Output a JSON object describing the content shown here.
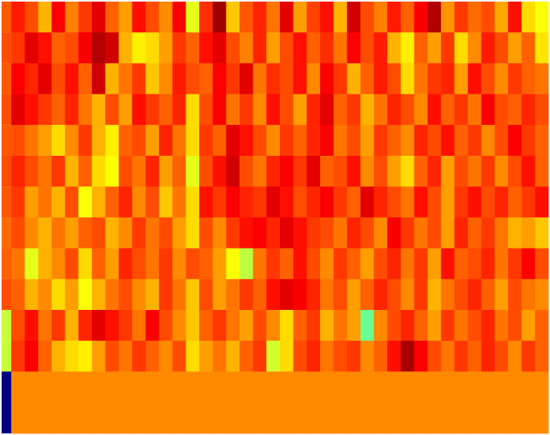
{
  "chart_data": {
    "type": "heatmap",
    "colormap": "jet",
    "zlim": [
      0,
      1
    ],
    "side_values": [
      0.79,
      0.8,
      0.79,
      0.8,
      0.79,
      0.8,
      0.79,
      0.77,
      0.78,
      0.8,
      0.57,
      0.57,
      0
    ],
    "values": [
      [
        0.85,
        0.8,
        0.7,
        0.88,
        0.75,
        0.82,
        0.9,
        0.78,
        0.72,
        0.86,
        0.8,
        0.74,
        0.88,
        0.6,
        0.83,
        0.97,
        0.68,
        0.79,
        0.84,
        0.76,
        0.9,
        0.72,
        0.81,
        0.86,
        0.7,
        0.92,
        0.8,
        0.75,
        0.85,
        0.78,
        0.88,
        0.95,
        0.73,
        0.82,
        0.77,
        0.8,
        0.71,
        0.86,
        0.66,
        0.62
      ],
      [
        0.82,
        0.9,
        0.86,
        0.78,
        0.8,
        0.88,
        0.95,
        0.92,
        0.7,
        0.64,
        0.66,
        0.72,
        0.82,
        0.78,
        0.86,
        0.9,
        0.8,
        0.75,
        0.84,
        0.72,
        0.8,
        0.86,
        0.78,
        0.83,
        0.76,
        0.88,
        0.8,
        0.85,
        0.7,
        0.64,
        0.78,
        0.72,
        0.82,
        0.66,
        0.74,
        0.85,
        0.8,
        0.72,
        0.78,
        0.65
      ],
      [
        0.88,
        0.84,
        0.9,
        0.8,
        0.86,
        0.78,
        0.92,
        0.7,
        0.76,
        0.82,
        0.68,
        0.74,
        0.85,
        0.8,
        0.78,
        0.88,
        0.82,
        0.9,
        0.76,
        0.83,
        0.8,
        0.86,
        0.74,
        0.88,
        0.82,
        0.7,
        0.78,
        0.85,
        0.8,
        0.66,
        0.76,
        0.82,
        0.84,
        0.72,
        0.86,
        0.8,
        0.74,
        0.82,
        0.78,
        0.76
      ],
      [
        0.9,
        0.86,
        0.82,
        0.78,
        0.84,
        0.76,
        0.7,
        0.8,
        0.72,
        0.86,
        0.82,
        0.78,
        0.84,
        0.66,
        0.8,
        0.88,
        0.76,
        0.82,
        0.74,
        0.86,
        0.8,
        0.72,
        0.84,
        0.9,
        0.78,
        0.82,
        0.7,
        0.76,
        0.84,
        0.8,
        0.74,
        0.86,
        0.78,
        0.82,
        0.76,
        0.88,
        0.8,
        0.78,
        0.84,
        0.8
      ],
      [
        0.8,
        0.76,
        0.72,
        0.66,
        0.74,
        0.82,
        0.7,
        0.64,
        0.78,
        0.8,
        0.72,
        0.84,
        0.76,
        0.66,
        0.82,
        0.78,
        0.9,
        0.86,
        0.8,
        0.74,
        0.82,
        0.78,
        0.84,
        0.88,
        0.76,
        0.8,
        0.72,
        0.82,
        0.78,
        0.74,
        0.84,
        0.8,
        0.86,
        0.78,
        0.82,
        0.74,
        0.8,
        0.88,
        0.82,
        0.78
      ],
      [
        0.84,
        0.8,
        0.76,
        0.82,
        0.7,
        0.78,
        0.66,
        0.62,
        0.8,
        0.76,
        0.84,
        0.72,
        0.78,
        0.6,
        0.8,
        0.86,
        0.92,
        0.8,
        0.76,
        0.84,
        0.88,
        0.82,
        0.9,
        0.78,
        0.8,
        0.86,
        0.74,
        0.8,
        0.72,
        0.66,
        0.78,
        0.84,
        0.72,
        0.8,
        0.76,
        0.82,
        0.74,
        0.8,
        0.86,
        0.78
      ],
      [
        0.82,
        0.72,
        0.76,
        0.7,
        0.8,
        0.62,
        0.7,
        0.78,
        0.84,
        0.74,
        0.8,
        0.68,
        0.76,
        0.66,
        0.86,
        0.82,
        0.88,
        0.84,
        0.82,
        0.9,
        0.86,
        0.8,
        0.84,
        0.88,
        0.82,
        0.78,
        0.9,
        0.84,
        0.8,
        0.76,
        0.86,
        0.8,
        0.72,
        0.82,
        0.86,
        0.8,
        0.84,
        0.78,
        0.82,
        0.86
      ],
      [
        0.8,
        0.74,
        0.7,
        0.76,
        0.72,
        0.78,
        0.8,
        0.7,
        0.74,
        0.82,
        0.76,
        0.8,
        0.72,
        0.66,
        0.8,
        0.74,
        0.82,
        0.86,
        0.88,
        0.84,
        0.9,
        0.86,
        0.82,
        0.8,
        0.76,
        0.84,
        0.8,
        0.74,
        0.88,
        0.82,
        0.76,
        0.8,
        0.72,
        0.84,
        0.78,
        0.82,
        0.76,
        0.7,
        0.72,
        0.68
      ],
      [
        0.76,
        0.6,
        0.7,
        0.74,
        0.8,
        0.66,
        0.78,
        0.72,
        0.84,
        0.8,
        0.76,
        0.82,
        0.74,
        0.8,
        0.78,
        0.72,
        0.62,
        0.56,
        0.76,
        0.82,
        0.78,
        0.86,
        0.8,
        0.74,
        0.82,
        0.78,
        0.72,
        0.8,
        0.84,
        0.76,
        0.82,
        0.72,
        0.86,
        0.78,
        0.8,
        0.84,
        0.76,
        0.82,
        0.88,
        0.8
      ],
      [
        0.78,
        0.7,
        0.74,
        0.66,
        0.72,
        0.62,
        0.7,
        0.76,
        0.8,
        0.74,
        0.7,
        0.82,
        0.76,
        0.68,
        0.8,
        0.72,
        0.76,
        0.82,
        0.78,
        0.86,
        0.9,
        0.88,
        0.84,
        0.76,
        0.8,
        0.72,
        0.78,
        0.84,
        0.8,
        0.74,
        0.82,
        0.7,
        0.76,
        0.8,
        0.84,
        0.78,
        0.72,
        0.8,
        0.76,
        0.74
      ],
      [
        0.8,
        0.86,
        0.76,
        0.82,
        0.7,
        0.84,
        0.9,
        0.86,
        0.82,
        0.76,
        0.88,
        0.8,
        0.74,
        0.68,
        0.78,
        0.82,
        0.76,
        0.72,
        0.8,
        0.74,
        0.66,
        0.78,
        0.82,
        0.7,
        0.76,
        0.72,
        0.48,
        0.74,
        0.8,
        0.84,
        0.78,
        0.72,
        0.82,
        0.76,
        0.8,
        0.84,
        0.76,
        0.8,
        0.72,
        0.78
      ],
      [
        0.82,
        0.88,
        0.78,
        0.7,
        0.66,
        0.64,
        0.72,
        0.8,
        0.76,
        0.82,
        0.78,
        0.74,
        0.8,
        0.66,
        0.72,
        0.76,
        0.7,
        0.78,
        0.82,
        0.58,
        0.66,
        0.8,
        0.84,
        0.76,
        0.8,
        0.82,
        0.74,
        0.78,
        0.86,
        0.96,
        0.88,
        0.8,
        0.76,
        0.82,
        0.78,
        0.84,
        0.8,
        0.74,
        0.82,
        0.78
      ],
      [
        0.74,
        0.74,
        0.74,
        0.74,
        0.74,
        0.74,
        0.74,
        0.74,
        0.74,
        0.74,
        0.74,
        0.74,
        0.74,
        0.74,
        0.74,
        0.74,
        0.74,
        0.74,
        0.74,
        0.74,
        0.74,
        0.74,
        0.74,
        0.74,
        0.74,
        0.74,
        0.74,
        0.74,
        0.74,
        0.74,
        0.74,
        0.74,
        0.74,
        0.74,
        0.74,
        0.74,
        0.74,
        0.74,
        0.74,
        0.74
      ]
    ]
  }
}
